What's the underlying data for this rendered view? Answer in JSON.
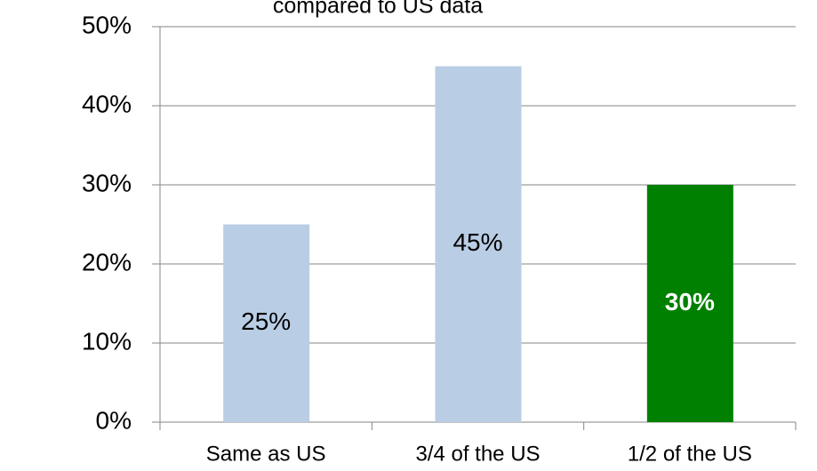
{
  "chart_data": {
    "type": "bar",
    "title": "compared to US data",
    "categories": [
      "Same as US",
      "3/4 of the US",
      "1/2 of the US"
    ],
    "values": [
      25,
      45,
      30
    ],
    "value_labels": [
      "25%",
      "45%",
      "30%"
    ],
    "colors": [
      "#b9cde5",
      "#b9cde5",
      "#008000"
    ],
    "label_colors": [
      "#000000",
      "#000000",
      "#ffffff"
    ],
    "label_bold": [
      false,
      false,
      true
    ],
    "ylim": [
      0,
      50
    ],
    "yticks": [
      {
        "value": 0,
        "label": "0%"
      },
      {
        "value": 10,
        "label": "10%"
      },
      {
        "value": 20,
        "label": "20%"
      },
      {
        "value": 30,
        "label": "30%"
      },
      {
        "value": 40,
        "label": "40%"
      },
      {
        "value": 50,
        "label": "50%"
      }
    ],
    "grid": true
  }
}
